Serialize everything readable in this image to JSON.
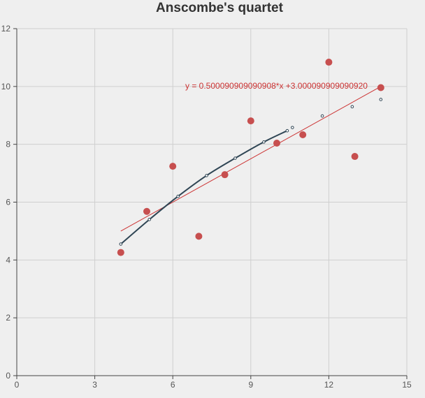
{
  "chart_data": {
    "type": "scatter",
    "title": "Anscombe's quartet",
    "xlabel": "",
    "ylabel": "",
    "xlim": [
      0,
      15
    ],
    "ylim": [
      0,
      12
    ],
    "x_ticks": [
      "0",
      "3",
      "6",
      "9",
      "12",
      "15"
    ],
    "y_ticks": [
      "0",
      "2",
      "4",
      "6",
      "8",
      "10",
      "12"
    ],
    "grid": true,
    "colors": {
      "points": "#c74f4f",
      "regression_line": "#cc3333",
      "formula_text": "#cc3333",
      "curve": "#2f4554",
      "curve_markers": "#2f4554"
    },
    "series": [
      {
        "type": "scatter",
        "points": [
          [
            10.0,
            8.04
          ],
          [
            8.0,
            6.95
          ],
          [
            13.0,
            7.58
          ],
          [
            9.0,
            8.81
          ],
          [
            11.0,
            8.33
          ],
          [
            14.0,
            9.96
          ],
          [
            6.0,
            7.24
          ],
          [
            4.0,
            4.26
          ],
          [
            12.0,
            10.84
          ],
          [
            7.0,
            4.82
          ],
          [
            5.0,
            5.68
          ]
        ]
      },
      {
        "type": "line",
        "points": [
          [
            4.0,
            5.0
          ],
          [
            14.0,
            10.0
          ]
        ],
        "label": "y = 0.500090909090908*x +3.000090909090920"
      },
      {
        "type": "line-with-markers",
        "points": [
          [
            4.0,
            4.55
          ],
          [
            5.1,
            5.4
          ],
          [
            6.2,
            6.2
          ],
          [
            7.3,
            6.92
          ],
          [
            8.4,
            7.52
          ],
          [
            9.5,
            8.08
          ],
          [
            10.4,
            8.47
          ]
        ]
      },
      {
        "type": "markers",
        "points": [
          [
            10.6,
            8.58
          ],
          [
            11.75,
            8.98
          ],
          [
            12.9,
            9.3
          ],
          [
            14.0,
            9.55
          ]
        ]
      }
    ]
  }
}
